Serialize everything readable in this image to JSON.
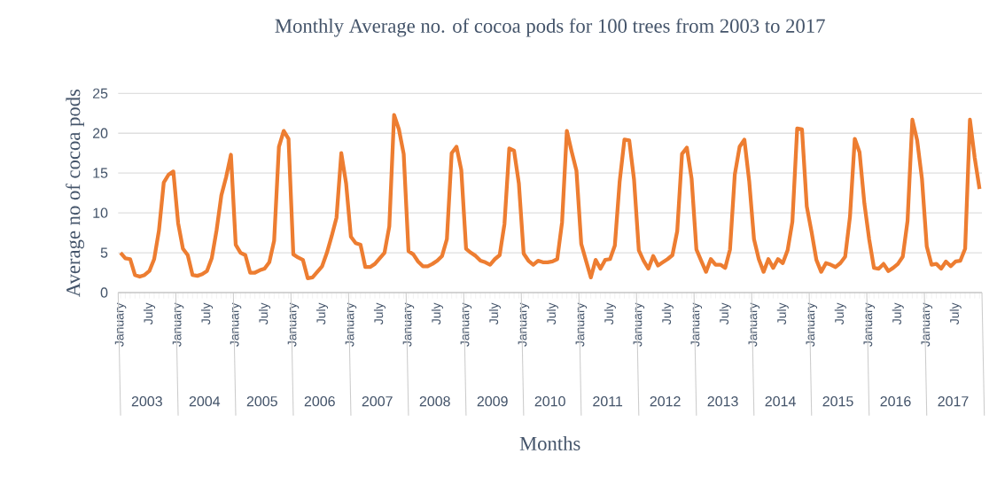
{
  "chart_data": {
    "type": "line",
    "title": "Monthly  Average no. of cocoa pods for 100 trees  from 2003 to 2017",
    "xlabel": "Months",
    "ylabel": "Average no of cocoa pods",
    "categories": [
      "January",
      null,
      null,
      null,
      null,
      null,
      "July",
      null,
      null,
      null,
      null,
      null,
      "January",
      null,
      null,
      null,
      null,
      null,
      "July",
      null,
      null,
      null,
      null,
      null,
      "January",
      null,
      null,
      null,
      null,
      null,
      "July",
      null,
      null,
      null,
      null,
      null,
      "January",
      null,
      null,
      null,
      null,
      null,
      "July",
      null,
      null,
      null,
      null,
      null,
      "January",
      null,
      null,
      null,
      null,
      null,
      "July",
      null,
      null,
      null,
      null,
      null,
      "January",
      null,
      null,
      null,
      null,
      null,
      "July",
      null,
      null,
      null,
      null,
      null,
      "January",
      null,
      null,
      null,
      null,
      null,
      "July",
      null,
      null,
      null,
      null,
      null,
      "January",
      null,
      null,
      null,
      null,
      null,
      "July",
      null,
      null,
      null,
      null,
      null,
      "January",
      null,
      null,
      null,
      null,
      null,
      "July",
      null,
      null,
      null,
      null,
      null,
      "January",
      null,
      null,
      null,
      null,
      null,
      "July",
      null,
      null,
      null,
      null,
      null,
      "January",
      null,
      null,
      null,
      null,
      null,
      "July",
      null,
      null,
      null,
      null,
      null,
      "January",
      null,
      null,
      null,
      null,
      null,
      "July",
      null,
      null,
      null,
      null,
      null,
      "January",
      null,
      null,
      null,
      null,
      null,
      "July",
      null,
      null,
      null,
      null,
      null,
      "January",
      null,
      null,
      null,
      null,
      null,
      "July",
      null,
      null,
      null,
      null,
      null,
      "January",
      null,
      null,
      null,
      null,
      null,
      "July",
      null,
      null,
      null,
      null,
      null
    ],
    "values": [
      5.0,
      4.3,
      4.2,
      2.2,
      2.0,
      2.2,
      2.7,
      4.2,
      7.8,
      13.8,
      14.8,
      15.2,
      8.7,
      5.5,
      4.7,
      2.2,
      2.1,
      2.3,
      2.7,
      4.3,
      7.8,
      12.2,
      14.5,
      17.3,
      6.0,
      5.0,
      4.7,
      2.5,
      2.5,
      2.8,
      3.0,
      3.8,
      6.5,
      18.3,
      20.3,
      19.3,
      4.8,
      4.4,
      4.1,
      1.8,
      1.9,
      2.6,
      3.3,
      5.0,
      7.1,
      9.4,
      17.5,
      13.7,
      7.0,
      6.2,
      6.0,
      3.2,
      3.2,
      3.6,
      4.3,
      5.0,
      8.3,
      22.3,
      20.5,
      17.4,
      5.2,
      4.8,
      3.9,
      3.3,
      3.3,
      3.6,
      4.0,
      4.6,
      6.7,
      17.5,
      18.3,
      15.4,
      5.5,
      5.0,
      4.6,
      4.0,
      3.8,
      3.5,
      4.2,
      4.7,
      8.6,
      18.1,
      17.8,
      13.7,
      4.9,
      4.0,
      3.5,
      4.0,
      3.8,
      3.8,
      3.9,
      4.2,
      8.8,
      20.3,
      17.7,
      15.3,
      6.1,
      4.0,
      1.9,
      4.1,
      3.0,
      4.1,
      4.2,
      5.9,
      13.9,
      19.2,
      19.1,
      14.2,
      5.3,
      4.0,
      3.0,
      4.6,
      3.4,
      3.8,
      4.2,
      4.7,
      7.7,
      17.4,
      18.2,
      14.3,
      5.4,
      4.0,
      2.6,
      4.2,
      3.5,
      3.5,
      3.1,
      5.4,
      14.8,
      18.3,
      19.2,
      14.0,
      6.7,
      4.2,
      2.6,
      4.2,
      3.1,
      4.2,
      3.7,
      5.3,
      8.9,
      20.6,
      20.5,
      10.8,
      7.6,
      4.1,
      2.6,
      3.7,
      3.5,
      3.2,
      3.7,
      4.5,
      9.5,
      19.3,
      17.6,
      11.2,
      6.7,
      3.1,
      3.0,
      3.6,
      2.7,
      3.1,
      3.6,
      4.5,
      9.0,
      21.7,
      19.1,
      14.3,
      5.8,
      3.5,
      3.6,
      3.0,
      3.9,
      3.3,
      3.9,
      4.0,
      5.5,
      21.7,
      16.9,
      13.0
    ],
    "color": "#ed7d31",
    "ylim": [
      0,
      25
    ],
    "yticks": [
      0,
      5,
      10,
      15,
      20,
      25
    ],
    "grid": "y",
    "annotations": [
      "2003",
      "2004",
      "2005",
      "2006",
      "2007",
      "2008",
      "2009",
      "2010",
      "2011",
      "2012",
      "2013",
      "2014",
      "2015",
      "2016",
      "2017"
    ]
  }
}
